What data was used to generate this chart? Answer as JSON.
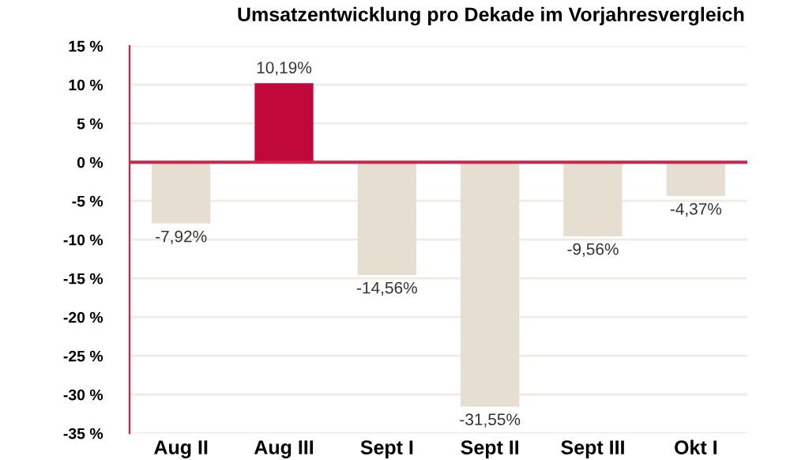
{
  "chart_data": {
    "type": "bar",
    "title": "Umsatzentwicklung pro Dekade im Vorjahresvergleich",
    "categories": [
      "Aug II",
      "Aug III",
      "Sept I",
      "Sept II",
      "Sept III",
      "Okt I"
    ],
    "values": [
      -7.92,
      10.19,
      -14.56,
      -31.55,
      -9.56,
      -4.37
    ],
    "colors": [
      "#e6dfd1",
      "#c0093a",
      "#e6dfd1",
      "#e6dfd1",
      "#e6dfd1",
      "#e6dfd1"
    ],
    "value_labels": [
      "-7,92%",
      "10,19%",
      "-14,56%",
      "-31,55%",
      "-9,56%",
      "-4,37%"
    ],
    "ylim": [
      -35,
      15
    ],
    "yticks": [
      {
        "value": 15,
        "label": "15 %"
      },
      {
        "value": 10,
        "label": "10 %"
      },
      {
        "value": 5,
        "label": "5 %"
      },
      {
        "value": 0,
        "label": "0 %"
      },
      {
        "value": -5,
        "label": "-5 %"
      },
      {
        "value": -10,
        "label": "-10 %"
      },
      {
        "value": -15,
        "label": "-15 %"
      },
      {
        "value": -20,
        "label": "-20 %"
      },
      {
        "value": -25,
        "label": "-25 %"
      },
      {
        "value": -30,
        "label": "-30 %"
      },
      {
        "value": -35,
        "label": "-35 %"
      }
    ],
    "ref_lines": [
      {
        "axis": "y",
        "value": 0,
        "color": "#d4214a"
      }
    ],
    "grid": "y",
    "legend": false
  }
}
